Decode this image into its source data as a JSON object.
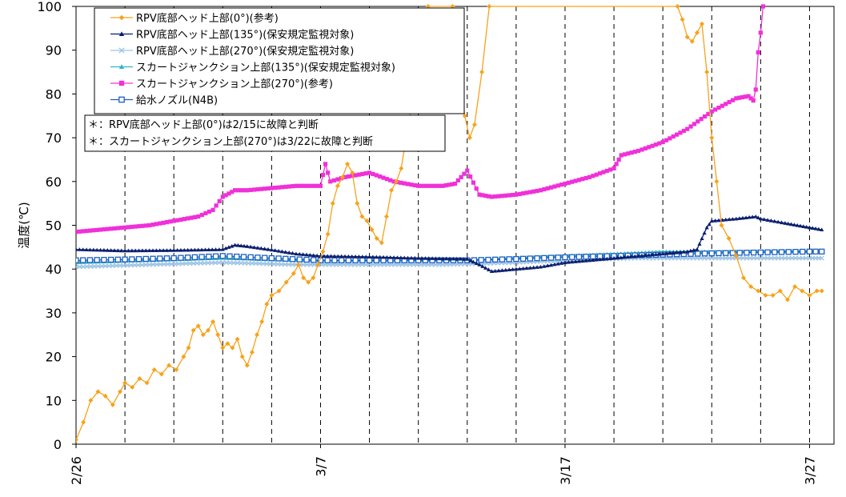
{
  "chart_data": {
    "type": "line",
    "ylabel": "温度(℃)",
    "ylim": [
      0,
      100
    ],
    "yticks": [
      0,
      10,
      20,
      30,
      40,
      50,
      60,
      70,
      80,
      90,
      100
    ],
    "xlim": [
      0,
      31
    ],
    "xticks": [
      {
        "x": 0,
        "label": "2/26"
      },
      {
        "x": 10,
        "label": "3/7"
      },
      {
        "x": 20,
        "label": "3/17"
      },
      {
        "x": 30,
        "label": "3/27"
      }
    ],
    "grid": {
      "vertical_dashed_every": 2,
      "horizontal": false
    },
    "legend_position": "top-left",
    "series": [
      {
        "name": "RPV底部ヘッド上部(0°)(参考)",
        "color": "#F7A21B",
        "marker": "diamond",
        "points": [
          [
            0,
            1
          ],
          [
            0.3,
            5
          ],
          [
            0.6,
            10
          ],
          [
            0.9,
            12
          ],
          [
            1.2,
            11
          ],
          [
            1.5,
            9
          ],
          [
            1.8,
            12
          ],
          [
            2.0,
            14
          ],
          [
            2.3,
            13
          ],
          [
            2.6,
            15
          ],
          [
            2.9,
            14
          ],
          [
            3.2,
            17
          ],
          [
            3.5,
            16
          ],
          [
            3.8,
            18
          ],
          [
            4.1,
            17
          ],
          [
            4.4,
            20
          ],
          [
            4.6,
            22
          ],
          [
            4.8,
            26
          ],
          [
            5.0,
            27
          ],
          [
            5.2,
            25
          ],
          [
            5.4,
            26
          ],
          [
            5.6,
            28
          ],
          [
            5.8,
            25
          ],
          [
            6.0,
            22
          ],
          [
            6.2,
            23
          ],
          [
            6.4,
            22
          ],
          [
            6.6,
            24
          ],
          [
            6.8,
            20
          ],
          [
            7.0,
            18
          ],
          [
            7.2,
            21
          ],
          [
            7.4,
            25
          ],
          [
            7.6,
            28
          ],
          [
            7.8,
            32
          ],
          [
            8.0,
            34
          ],
          [
            8.3,
            35
          ],
          [
            8.6,
            37
          ],
          [
            8.9,
            39
          ],
          [
            9.1,
            41
          ],
          [
            9.3,
            38
          ],
          [
            9.5,
            37
          ],
          [
            9.7,
            38
          ],
          [
            9.9,
            41
          ],
          [
            10.1,
            44
          ],
          [
            10.3,
            48
          ],
          [
            10.5,
            55
          ],
          [
            10.7,
            59
          ],
          [
            10.9,
            61
          ],
          [
            11.1,
            64
          ],
          [
            11.3,
            62
          ],
          [
            11.5,
            55
          ],
          [
            11.7,
            52
          ],
          [
            11.9,
            51
          ],
          [
            12.1,
            49
          ],
          [
            12.3,
            47
          ],
          [
            12.5,
            46
          ],
          [
            12.7,
            52
          ],
          [
            12.9,
            58
          ],
          [
            13.1,
            60
          ],
          [
            13.3,
            63
          ],
          [
            13.5,
            70
          ],
          [
            13.8,
            80
          ],
          [
            14.1,
            90
          ],
          [
            14.4,
            100
          ],
          [
            15.4,
            100
          ],
          [
            15.7,
            85
          ],
          [
            15.9,
            75
          ],
          [
            16.1,
            70
          ],
          [
            16.3,
            73
          ],
          [
            16.6,
            85
          ],
          [
            16.9,
            100
          ],
          [
            24.6,
            100
          ],
          [
            24.8,
            97
          ],
          [
            25.0,
            93
          ],
          [
            25.2,
            92
          ],
          [
            25.4,
            94
          ],
          [
            25.6,
            96
          ],
          [
            25.8,
            85
          ],
          [
            26.0,
            70
          ],
          [
            26.2,
            60
          ],
          [
            26.4,
            50
          ],
          [
            26.7,
            47
          ],
          [
            27.0,
            43
          ],
          [
            27.3,
            38
          ],
          [
            27.6,
            36
          ],
          [
            27.9,
            35
          ],
          [
            28.2,
            34
          ],
          [
            28.5,
            34
          ],
          [
            28.8,
            35
          ],
          [
            29.1,
            33
          ],
          [
            29.4,
            36
          ],
          [
            29.7,
            35
          ],
          [
            30.0,
            34
          ],
          [
            30.3,
            35
          ],
          [
            30.5,
            35
          ]
        ]
      },
      {
        "name": "RPV底部ヘッド上部(135°)(保安規定監視対象)",
        "color": "#0A1E6E",
        "marker": "triangle",
        "points": [
          [
            0,
            44.5
          ],
          [
            2,
            44.2
          ],
          [
            4,
            44.3
          ],
          [
            6,
            44.5
          ],
          [
            6.5,
            45.5
          ],
          [
            7,
            45.2
          ],
          [
            8,
            44.4
          ],
          [
            9,
            43.5
          ],
          [
            10,
            43.0
          ],
          [
            12,
            42.8
          ],
          [
            14,
            42.5
          ],
          [
            16,
            42.3
          ],
          [
            16.5,
            41.0
          ],
          [
            17,
            39.5
          ],
          [
            18,
            40.0
          ],
          [
            19,
            40.5
          ],
          [
            20,
            41.5
          ],
          [
            22,
            42.5
          ],
          [
            24,
            43.5
          ],
          [
            25,
            44.0
          ],
          [
            25.4,
            44.5
          ],
          [
            25.6,
            47
          ],
          [
            25.8,
            49.5
          ],
          [
            26,
            51
          ],
          [
            27,
            51.5
          ],
          [
            27.8,
            52
          ],
          [
            28,
            51.5
          ],
          [
            29,
            50.5
          ],
          [
            29.5,
            50
          ],
          [
            30,
            49.5
          ],
          [
            30.5,
            49
          ]
        ]
      },
      {
        "name": "RPV底部ヘッド上部(270°)(保安規定監視対象)",
        "color": "#9DC3E6",
        "marker": "x",
        "points": [
          [
            0,
            40.5
          ],
          [
            3,
            41.0
          ],
          [
            6,
            41.5
          ],
          [
            9,
            41.0
          ],
          [
            12,
            41.0
          ],
          [
            15,
            41.0
          ],
          [
            18,
            41.5
          ],
          [
            20,
            42.0
          ],
          [
            23,
            42.5
          ],
          [
            26,
            42.5
          ],
          [
            28,
            42.5
          ],
          [
            30,
            42.5
          ],
          [
            30.5,
            42.5
          ]
        ]
      },
      {
        "name": "スカートジャンクション上部(135°)(保安規定監視対象)",
        "color": "#33B5C4",
        "marker": "triangle",
        "points": [
          [
            0,
            41.5
          ],
          [
            3,
            42.0
          ],
          [
            6,
            42.5
          ],
          [
            9,
            42.0
          ],
          [
            12,
            42.0
          ],
          [
            15,
            42.0
          ],
          [
            18,
            42.5
          ],
          [
            20,
            43.0
          ],
          [
            22,
            43.5
          ],
          [
            24,
            44.0
          ],
          [
            26,
            44.0
          ],
          [
            28,
            44.0
          ],
          [
            30,
            44.0
          ],
          [
            30.5,
            44.0
          ]
        ]
      },
      {
        "name": "スカートジャンクション上部(270°)(参考)",
        "color": "#F030D8",
        "marker": "square",
        "points": [
          [
            0,
            48.5
          ],
          [
            1,
            49.0
          ],
          [
            2,
            49.5
          ],
          [
            3,
            50.0
          ],
          [
            4,
            51.0
          ],
          [
            5,
            52.0
          ],
          [
            5.6,
            53.5
          ],
          [
            6,
            56.5
          ],
          [
            6.5,
            58.0
          ],
          [
            7,
            58.0
          ],
          [
            8,
            58.5
          ],
          [
            9,
            59.0
          ],
          [
            10,
            59.0
          ],
          [
            10.2,
            64.0
          ],
          [
            10.4,
            60.0
          ],
          [
            11,
            61.0
          ],
          [
            12,
            62.0
          ],
          [
            13,
            60.0
          ],
          [
            14,
            59.0
          ],
          [
            15,
            59.0
          ],
          [
            15.5,
            59.5
          ],
          [
            16,
            62.5
          ],
          [
            16.5,
            57.0
          ],
          [
            17,
            56.5
          ],
          [
            18,
            57.0
          ],
          [
            19,
            58.0
          ],
          [
            20,
            59.5
          ],
          [
            21,
            61.0
          ],
          [
            22,
            63.0
          ],
          [
            22.3,
            66.0
          ],
          [
            23,
            67.0
          ],
          [
            24,
            69.0
          ],
          [
            25,
            72.0
          ],
          [
            26,
            76.0
          ],
          [
            27,
            79.0
          ],
          [
            27.5,
            79.5
          ],
          [
            27.7,
            78.5
          ],
          [
            27.8,
            81.0
          ],
          [
            27.9,
            89.5
          ],
          [
            28.0,
            94.0
          ],
          [
            28.1,
            100
          ]
        ]
      },
      {
        "name": "給水ノズル(N4B)",
        "color": "#1F5FBF",
        "marker": "open-square",
        "points": [
          [
            0,
            42.0
          ],
          [
            2,
            42.2
          ],
          [
            4,
            42.5
          ],
          [
            6,
            43.0
          ],
          [
            8,
            42.5
          ],
          [
            10,
            42.0
          ],
          [
            12,
            42.0
          ],
          [
            14,
            42.0
          ],
          [
            16,
            42.0
          ],
          [
            18,
            42.3
          ],
          [
            20,
            42.7
          ],
          [
            22,
            43.0
          ],
          [
            24,
            43.3
          ],
          [
            26,
            43.6
          ],
          [
            28,
            43.8
          ],
          [
            30,
            44.0
          ],
          [
            30.5,
            44.0
          ]
        ]
      }
    ],
    "notes": [
      "＊：RPV底部ヘッド上部(0°)は2/15に故障と判断",
      "＊：スカートジャンクション上部(270°)は3/22に故障と判断"
    ]
  }
}
